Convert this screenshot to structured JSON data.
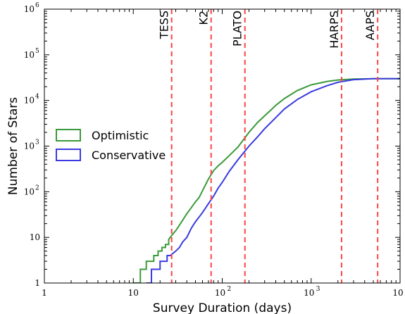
{
  "chart_data": {
    "type": "line",
    "title": "",
    "xlabel": "Survey Duration (days)",
    "ylabel": "Number of Stars",
    "xscale": "log",
    "yscale": "log",
    "xlim": [
      1,
      10000
    ],
    "ylim": [
      1,
      1000000
    ],
    "x_ticks": [
      {
        "base": "10",
        "exp": "0",
        "text": "1"
      },
      {
        "base": "10",
        "exp": "",
        "text": "10"
      },
      {
        "base": "10",
        "exp": "2",
        "text": ""
      },
      {
        "base": "10",
        "exp": "3",
        "text": ""
      },
      {
        "base": "10",
        "exp": "4",
        "text": ""
      }
    ],
    "y_ticks": [
      {
        "text": "1",
        "exp": ""
      },
      {
        "text": "10",
        "exp": ""
      },
      {
        "text": "10",
        "exp": "2"
      },
      {
        "text": "10",
        "exp": "3"
      },
      {
        "text": "10",
        "exp": "4"
      },
      {
        "text": "10",
        "exp": "5"
      },
      {
        "text": "10",
        "exp": "6"
      }
    ],
    "legend_position": "center-left",
    "grid": false,
    "series": [
      {
        "name": "Optimistic",
        "color": "#3a9a3a",
        "points": [
          [
            10,
            1
          ],
          [
            12,
            1
          ],
          [
            12,
            2
          ],
          [
            14,
            2
          ],
          [
            14,
            3
          ],
          [
            17,
            3
          ],
          [
            17,
            4
          ],
          [
            19,
            4
          ],
          [
            19,
            5
          ],
          [
            21,
            5
          ],
          [
            21,
            6
          ],
          [
            23,
            6
          ],
          [
            23,
            7
          ],
          [
            25,
            7
          ],
          [
            25,
            9
          ],
          [
            27,
            11
          ],
          [
            30,
            14
          ],
          [
            35,
            22
          ],
          [
            40,
            33
          ],
          [
            45,
            45
          ],
          [
            50,
            60
          ],
          [
            55,
            75
          ],
          [
            60,
            105
          ],
          [
            70,
            190
          ],
          [
            80,
            290
          ],
          [
            90,
            370
          ],
          [
            100,
            440
          ],
          [
            120,
            620
          ],
          [
            150,
            950
          ],
          [
            200,
            2000
          ],
          [
            250,
            3300
          ],
          [
            300,
            4600
          ],
          [
            400,
            7800
          ],
          [
            500,
            11000
          ],
          [
            700,
            16500
          ],
          [
            1000,
            22000
          ],
          [
            1500,
            26000
          ],
          [
            2000,
            28000
          ],
          [
            3000,
            29500
          ],
          [
            5000,
            30000
          ],
          [
            10000,
            30000
          ]
        ]
      },
      {
        "name": "Conservative",
        "color": "#3a3ae0",
        "points": [
          [
            14,
            1
          ],
          [
            16,
            1
          ],
          [
            16,
            2
          ],
          [
            20,
            2
          ],
          [
            20,
            3
          ],
          [
            24,
            3
          ],
          [
            24,
            4
          ],
          [
            26,
            4
          ],
          [
            30,
            5
          ],
          [
            33,
            6
          ],
          [
            36,
            8
          ],
          [
            40,
            10
          ],
          [
            45,
            16
          ],
          [
            50,
            22
          ],
          [
            55,
            28
          ],
          [
            60,
            35
          ],
          [
            70,
            55
          ],
          [
            80,
            80
          ],
          [
            90,
            120
          ],
          [
            100,
            160
          ],
          [
            120,
            280
          ],
          [
            150,
            500
          ],
          [
            200,
            1000
          ],
          [
            250,
            1600
          ],
          [
            300,
            2400
          ],
          [
            400,
            4200
          ],
          [
            500,
            6500
          ],
          [
            700,
            10500
          ],
          [
            1000,
            15500
          ],
          [
            1500,
            21000
          ],
          [
            2000,
            25000
          ],
          [
            3000,
            28500
          ],
          [
            5000,
            30000
          ],
          [
            10000,
            30000
          ]
        ]
      }
    ],
    "surveys": [
      {
        "name": "TESS",
        "days": 27
      },
      {
        "name": "K2",
        "days": 75
      },
      {
        "name": "PLATO",
        "days": 180
      },
      {
        "name": "HARPS",
        "days": 2200
      },
      {
        "name": "AAPS",
        "days": 5600
      }
    ],
    "survey_line_color": "#ff4444"
  }
}
